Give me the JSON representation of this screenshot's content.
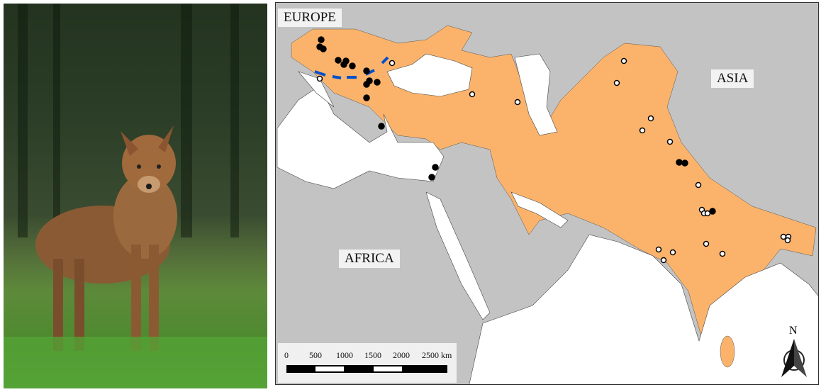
{
  "photo": {
    "subject": "golden jackal photograph"
  },
  "map": {
    "labels": {
      "europe": "EUROPE",
      "asia": "ASIA",
      "africa": "AFRICA"
    },
    "scale_bar": {
      "ticks": [
        "0",
        "500",
        "1000",
        "1500",
        "2000",
        "2500 km"
      ]
    },
    "north_arrow": "N",
    "colors": {
      "land": "#c3c3c3",
      "sea": "#ffffff",
      "range": "#fbb36b",
      "boundary_line": "#0050d0"
    }
  }
}
